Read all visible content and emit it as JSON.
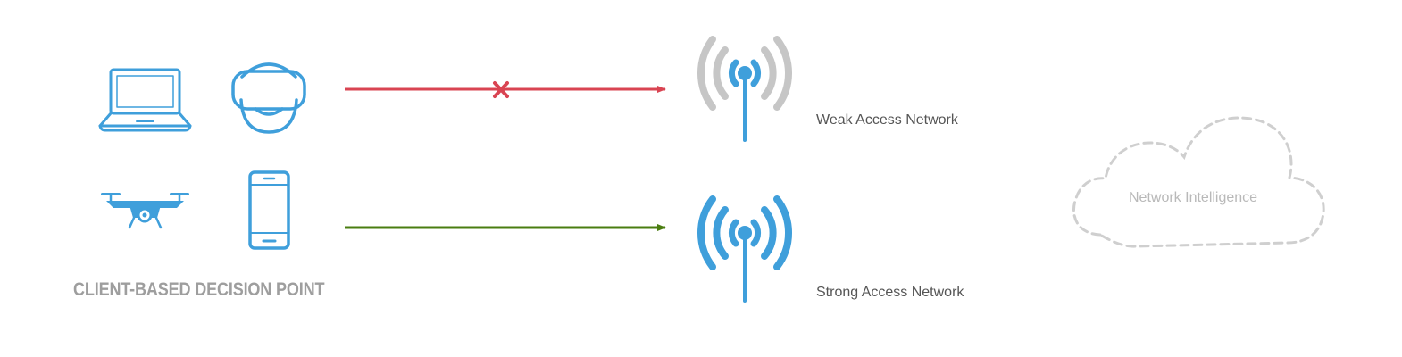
{
  "client_decision_point": {
    "title": "CLIENT-BASED DECISION POINT",
    "devices": [
      "laptop-icon",
      "vr-headset-icon",
      "drone-icon",
      "smartphone-icon"
    ]
  },
  "networks": {
    "weak": {
      "label": "Weak Access Network",
      "status": "blocked"
    },
    "strong": {
      "label": "Strong Access Network",
      "status": "connected"
    }
  },
  "cloud": {
    "label": "Network Intelligence",
    "style": "dashed"
  },
  "colors": {
    "device_blue": "#3f9fdb",
    "weak_arrow": "#d94452",
    "strong_arrow": "#4a7d10",
    "weak_signal_waves": "#c6c6c6",
    "label_text": "#555555",
    "title_gray": "#9e9e9e",
    "cloud_dash": "#cfcfcf"
  }
}
